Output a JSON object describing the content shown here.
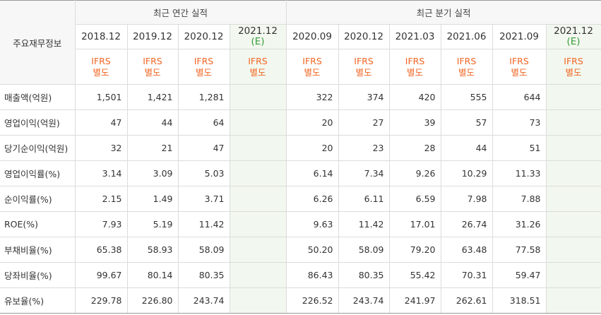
{
  "header": {
    "row_label": "주요재무정보",
    "annual_group": "최근 연간 실적",
    "quarter_group": "최근 분기 실적",
    "annual_periods": [
      {
        "label": "2018.12",
        "est": ""
      },
      {
        "label": "2019.12",
        "est": ""
      },
      {
        "label": "2020.12",
        "est": ""
      },
      {
        "label": "2021.12",
        "est": "(E)"
      }
    ],
    "quarter_periods": [
      {
        "label": "2020.09",
        "est": ""
      },
      {
        "label": "2020.12",
        "est": ""
      },
      {
        "label": "2021.03",
        "est": ""
      },
      {
        "label": "2021.06",
        "est": ""
      },
      {
        "label": "2021.09",
        "est": ""
      },
      {
        "label": "2021.12",
        "est": "(E)"
      }
    ],
    "ifrs_line1": "IFRS",
    "ifrs_line2": "별도"
  },
  "rows": [
    {
      "label": "매출액(억원)",
      "annual": [
        "1,501",
        "1,421",
        "1,281",
        ""
      ],
      "quarter": [
        "322",
        "374",
        "420",
        "555",
        "644",
        ""
      ]
    },
    {
      "label": "영업이익(억원)",
      "annual": [
        "47",
        "44",
        "64",
        ""
      ],
      "quarter": [
        "20",
        "27",
        "39",
        "57",
        "73",
        ""
      ]
    },
    {
      "label": "당기순이익(억원)",
      "annual": [
        "32",
        "21",
        "47",
        ""
      ],
      "quarter": [
        "20",
        "23",
        "28",
        "44",
        "51",
        ""
      ]
    },
    {
      "label": "영업이익률(%)",
      "annual": [
        "3.14",
        "3.09",
        "5.03",
        ""
      ],
      "quarter": [
        "6.14",
        "7.34",
        "9.26",
        "10.29",
        "11.33",
        ""
      ]
    },
    {
      "label": "순이익률(%)",
      "annual": [
        "2.15",
        "1.49",
        "3.71",
        ""
      ],
      "quarter": [
        "6.26",
        "6.11",
        "6.59",
        "7.98",
        "7.88",
        ""
      ]
    },
    {
      "label": "ROE(%)",
      "annual": [
        "7.93",
        "5.19",
        "11.42",
        ""
      ],
      "quarter": [
        "9.63",
        "11.42",
        "17.01",
        "26.74",
        "31.26",
        ""
      ]
    },
    {
      "label": "부채비율(%)",
      "annual": [
        "65.38",
        "58.93",
        "58.09",
        ""
      ],
      "quarter": [
        "50.20",
        "58.09",
        "79.20",
        "63.48",
        "77.58",
        ""
      ]
    },
    {
      "label": "당좌비율(%)",
      "annual": [
        "99.67",
        "80.14",
        "80.35",
        ""
      ],
      "quarter": [
        "86.43",
        "80.35",
        "55.42",
        "70.31",
        "59.47",
        ""
      ]
    },
    {
      "label": "유보율(%)",
      "annual": [
        "229.78",
        "226.80",
        "243.74",
        ""
      ],
      "quarter": [
        "226.52",
        "243.74",
        "241.97",
        "262.61",
        "318.51",
        ""
      ]
    }
  ]
}
